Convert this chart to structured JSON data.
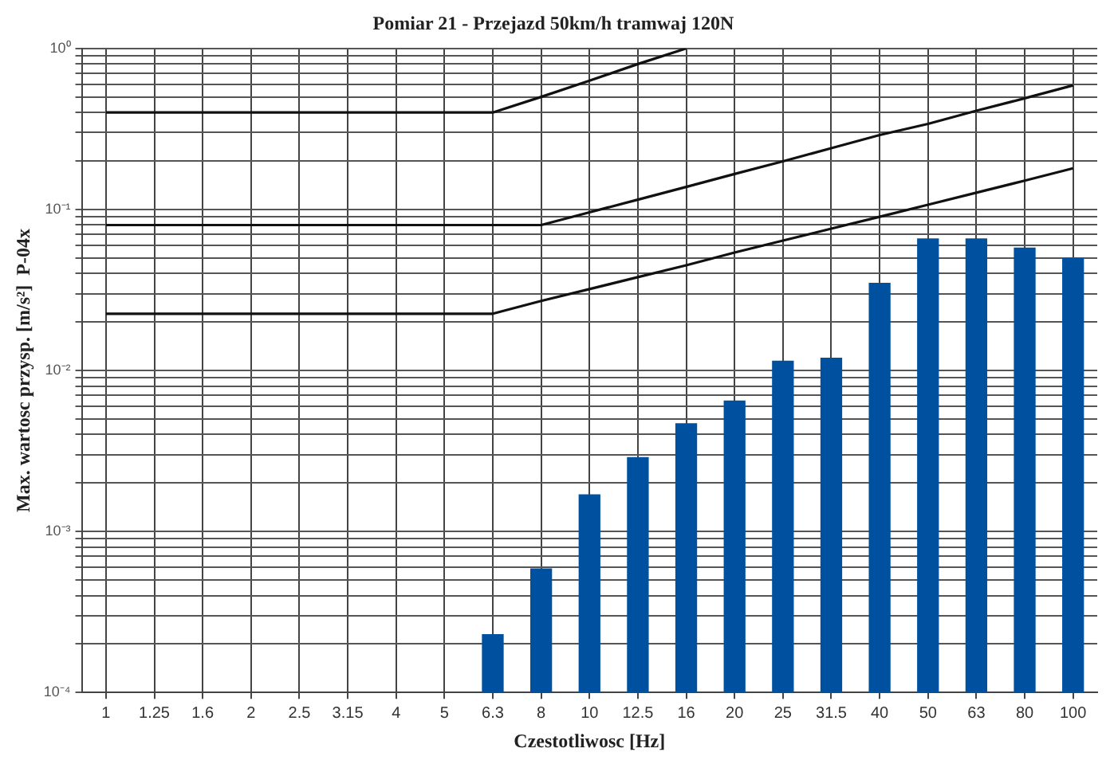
{
  "chart_data": {
    "type": "bar",
    "title": "Pomiar 21 - Przejazd 50km/h tramwaj 120N",
    "xlabel": "Czestotliwosc [Hz]",
    "ylabel": "Max. wartosc przysp. [m/s²]  P-04x",
    "categories": [
      "1",
      "1.25",
      "1.6",
      "2",
      "2.5",
      "3.15",
      "4",
      "5",
      "6.3",
      "8",
      "10",
      "12.5",
      "16",
      "20",
      "25",
      "31.5",
      "40",
      "50",
      "63",
      "80",
      "100"
    ],
    "series": [
      {
        "color": "#0050a0",
        "values": [
          null,
          null,
          null,
          null,
          null,
          null,
          null,
          null,
          0.00023,
          0.00059,
          0.0017,
          0.0029,
          0.0047,
          0.0065,
          0.0115,
          0.012,
          0.035,
          0.066,
          0.066,
          0.058,
          0.05
        ]
      },
      {
        "type": "line",
        "color": "#111111",
        "values": [
          0.4,
          0.4,
          0.4,
          0.4,
          0.4,
          0.4,
          0.4,
          0.4,
          0.4,
          0.5,
          0.63,
          0.8,
          1.0,
          null,
          null,
          null,
          null,
          null,
          null,
          null,
          null
        ]
      },
      {
        "type": "line",
        "color": "#111111",
        "values": [
          0.08,
          0.08,
          0.08,
          0.08,
          0.08,
          0.08,
          0.08,
          0.08,
          0.08,
          0.08,
          0.096,
          0.115,
          0.138,
          0.166,
          0.199,
          0.24,
          0.29,
          0.34,
          0.41,
          0.49,
          0.59
        ]
      },
      {
        "type": "line",
        "color": "#111111",
        "values": [
          0.0225,
          0.0225,
          0.0225,
          0.0225,
          0.0225,
          0.0225,
          0.0225,
          0.0225,
          0.0225,
          0.027,
          0.032,
          0.038,
          0.045,
          0.054,
          0.064,
          0.076,
          0.09,
          0.107,
          0.127,
          0.151,
          0.18
        ]
      }
    ],
    "log": "y",
    "ylim": [
      0.0001,
      1
    ],
    "yticks": [
      {
        "value": 0.0001,
        "label": "10⁻⁴"
      },
      {
        "value": 0.0002,
        "label": null
      },
      {
        "value": 0.0003,
        "label": null
      },
      {
        "value": 0.0004,
        "label": null
      },
      {
        "value": 0.0005,
        "label": null
      },
      {
        "value": 0.0006,
        "label": null
      },
      {
        "value": 0.0007,
        "label": null
      },
      {
        "value": 0.0008,
        "label": null
      },
      {
        "value": 0.0009,
        "label": null
      },
      {
        "value": 0.001,
        "label": "10⁻³"
      },
      {
        "value": 0.002,
        "label": null
      },
      {
        "value": 0.003,
        "label": null
      },
      {
        "value": 0.004,
        "label": null
      },
      {
        "value": 0.005,
        "label": null
      },
      {
        "value": 0.006,
        "label": null
      },
      {
        "value": 0.007,
        "label": null
      },
      {
        "value": 0.008,
        "label": null
      },
      {
        "value": 0.009,
        "label": null
      },
      {
        "value": 0.01,
        "label": "10⁻²"
      },
      {
        "value": 0.02,
        "label": null
      },
      {
        "value": 0.03,
        "label": null
      },
      {
        "value": 0.04,
        "label": null
      },
      {
        "value": 0.05,
        "label": null
      },
      {
        "value": 0.06,
        "label": null
      },
      {
        "value": 0.07,
        "label": null
      },
      {
        "value": 0.08,
        "label": null
      },
      {
        "value": 0.09,
        "label": null
      },
      {
        "value": 0.1,
        "label": "10⁻¹"
      },
      {
        "value": 0.2,
        "label": null
      },
      {
        "value": 0.3,
        "label": null
      },
      {
        "value": 0.4,
        "label": null
      },
      {
        "value": 0.5,
        "label": null
      },
      {
        "value": 0.6,
        "label": null
      },
      {
        "value": 0.7,
        "label": null
      },
      {
        "value": 0.8,
        "label": null
      },
      {
        "value": 0.9,
        "label": null
      },
      {
        "value": 1,
        "label": "10⁰"
      }
    ],
    "grid": true,
    "legend": false,
    "marker": "none",
    "line_style": "solid"
  }
}
